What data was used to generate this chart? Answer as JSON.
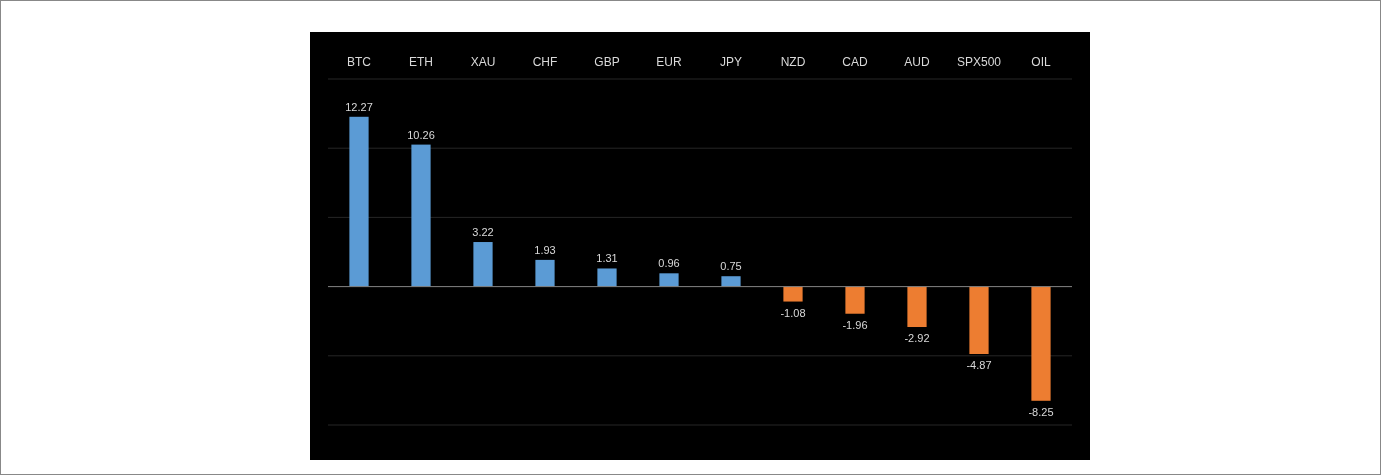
{
  "chart_data": {
    "type": "bar",
    "categories": [
      "BTC",
      "ETH",
      "XAU",
      "CHF",
      "GBP",
      "EUR",
      "JPY",
      "NZD",
      "CAD",
      "AUD",
      "SPX500",
      "OIL"
    ],
    "values": [
      12.27,
      10.26,
      3.22,
      1.93,
      1.31,
      0.96,
      0.75,
      -1.08,
      -1.96,
      -2.92,
      -4.87,
      -8.25
    ],
    "colors": [
      "#5b9bd5",
      "#5b9bd5",
      "#5b9bd5",
      "#5b9bd5",
      "#5b9bd5",
      "#5b9bd5",
      "#5b9bd5",
      "#ed7d31",
      "#ed7d31",
      "#ed7d31",
      "#ed7d31",
      "#ed7d31"
    ],
    "ylim": [
      -10,
      15
    ],
    "yticks": [
      {
        "value": -10,
        "label": null
      },
      {
        "value": -5,
        "label": null
      },
      {
        "value": 0,
        "label": null
      },
      {
        "value": 5,
        "label": null
      },
      {
        "value": 10,
        "label": null
      },
      {
        "value": 15,
        "label": null
      }
    ],
    "tick_labels": "x",
    "grid": "y",
    "data_labels": true
  }
}
